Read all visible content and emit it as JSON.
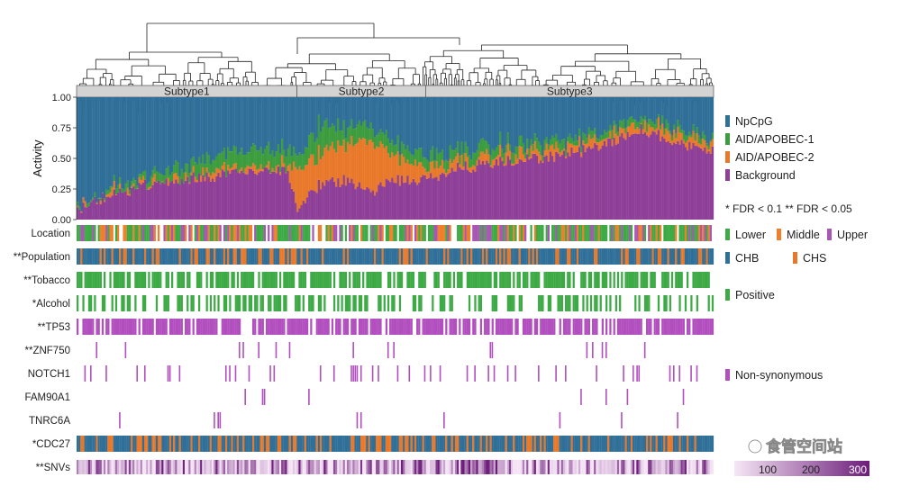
{
  "colors": {
    "npcpg": "#2f6f98",
    "aid1": "#3d9c3d",
    "aid2": "#e8782a",
    "background": "#8e3f97",
    "lower": "#3daa45",
    "middle": "#ef7f2a",
    "upper": "#a857b4",
    "chb": "#2f6f98",
    "chs": "#e8782a",
    "positive": "#3daa45",
    "nonsyn": "#b24fbf",
    "snv_low": "#f6e6f6",
    "snv_high": "#6c1d7a"
  },
  "chart_data": {
    "type": "bar",
    "stacked": true,
    "ylabel": "Activity",
    "yticks": [
      "0.00",
      "0.25",
      "0.50",
      "0.75",
      "1.00"
    ],
    "ylim": [
      0,
      1
    ],
    "subtypes": [
      {
        "label": "Subtype1",
        "from": 0,
        "to": 0.346
      },
      {
        "label": "Subtype2",
        "from": 0.346,
        "to": 0.548
      },
      {
        "label": "Subtype3",
        "from": 0.548,
        "to": 1
      }
    ],
    "n_samples": 330,
    "series": [
      {
        "name": "NpCpG",
        "color_key": "npcpg"
      },
      {
        "name": "AID/APOBEC-1",
        "color_key": "aid1"
      },
      {
        "name": "AID/APOBEC-2",
        "color_key": "aid2"
      },
      {
        "name": "Background",
        "color_key": "background"
      }
    ],
    "profile_points": [
      {
        "x": 0.0,
        "bg": 0.08,
        "a2": 0.0,
        "a1": 0.01
      },
      {
        "x": 0.02,
        "bg": 0.12,
        "a2": 0.01,
        "a1": 0.02
      },
      {
        "x": 0.05,
        "bg": 0.2,
        "a2": 0.02,
        "a1": 0.03
      },
      {
        "x": 0.1,
        "bg": 0.27,
        "a2": 0.03,
        "a1": 0.05
      },
      {
        "x": 0.16,
        "bg": 0.33,
        "a2": 0.03,
        "a1": 0.09
      },
      {
        "x": 0.22,
        "bg": 0.36,
        "a2": 0.03,
        "a1": 0.12
      },
      {
        "x": 0.28,
        "bg": 0.38,
        "a2": 0.04,
        "a1": 0.14
      },
      {
        "x": 0.33,
        "bg": 0.42,
        "a2": 0.05,
        "a1": 0.14
      },
      {
        "x": 0.346,
        "bg": 0.1,
        "a2": 0.3,
        "a1": 0.12
      },
      {
        "x": 0.38,
        "bg": 0.28,
        "a2": 0.25,
        "a1": 0.22
      },
      {
        "x": 0.42,
        "bg": 0.32,
        "a2": 0.3,
        "a1": 0.14
      },
      {
        "x": 0.46,
        "bg": 0.22,
        "a2": 0.4,
        "a1": 0.12
      },
      {
        "x": 0.5,
        "bg": 0.32,
        "a2": 0.2,
        "a1": 0.1
      },
      {
        "x": 0.548,
        "bg": 0.32,
        "a2": 0.1,
        "a1": 0.1
      },
      {
        "x": 0.6,
        "bg": 0.42,
        "a2": 0.07,
        "a1": 0.09
      },
      {
        "x": 0.66,
        "bg": 0.46,
        "a2": 0.06,
        "a1": 0.08
      },
      {
        "x": 0.72,
        "bg": 0.5,
        "a2": 0.06,
        "a1": 0.07
      },
      {
        "x": 0.78,
        "bg": 0.54,
        "a2": 0.06,
        "a1": 0.06
      },
      {
        "x": 0.84,
        "bg": 0.62,
        "a2": 0.05,
        "a1": 0.05
      },
      {
        "x": 0.88,
        "bg": 0.75,
        "a2": 0.05,
        "a1": 0.06
      },
      {
        "x": 0.92,
        "bg": 0.68,
        "a2": 0.06,
        "a1": 0.05
      },
      {
        "x": 0.96,
        "bg": 0.6,
        "a2": 0.08,
        "a1": 0.05
      },
      {
        "x": 1.0,
        "bg": 0.56,
        "a2": 0.06,
        "a1": 0.04
      }
    ]
  },
  "tracks": [
    {
      "label": "Location",
      "type": "cat3",
      "density": 0.85,
      "colors": [
        "lower",
        "middle",
        "upper"
      ]
    },
    {
      "label": "**Population",
      "type": "cat2",
      "density": 1.0,
      "colors": [
        "chb",
        "chs"
      ],
      "major": 0.75
    },
    {
      "label": "**Tobacco",
      "type": "binary",
      "density": 0.72,
      "color": "positive"
    },
    {
      "label": "*Alcohol",
      "type": "binary",
      "density": 0.42,
      "color": "positive"
    },
    {
      "label": "**TP53",
      "type": "binary",
      "density": 0.8,
      "color": "nonsyn"
    },
    {
      "label": "**ZNF750",
      "type": "binary",
      "density": 0.06,
      "color": "nonsyn"
    },
    {
      "label": "NOTCH1",
      "type": "binary",
      "density": 0.12,
      "color": "nonsyn"
    },
    {
      "label": "FAM90A1",
      "type": "binary",
      "density": 0.03,
      "color": "nonsyn"
    },
    {
      "label": "TNRC6A",
      "type": "binary",
      "density": 0.03,
      "color": "nonsyn"
    },
    {
      "label": "*CDC27",
      "type": "cat2",
      "density": 1.0,
      "colors": [
        "chb",
        "chs"
      ],
      "major": 0.7
    },
    {
      "label": "**SNVs",
      "type": "heat"
    }
  ],
  "legend": {
    "signatures": [
      "NpCpG",
      "AID/APOBEC-1",
      "AID/APOBEC-2",
      "Background"
    ],
    "fdr_note": "* FDR < 0.1    ** FDR < 0.05",
    "location": [
      "Lower",
      "Middle",
      "Upper"
    ],
    "population": [
      "CHB",
      "CHS"
    ],
    "positive": "Positive",
    "nonsyn": "Non-synonymous",
    "snv_ticks": [
      "100",
      "200",
      "300"
    ]
  },
  "watermark": "食管空间站"
}
